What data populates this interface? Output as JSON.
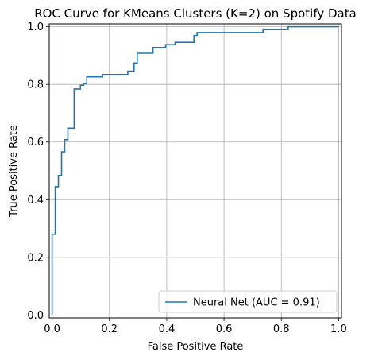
{
  "chart_data": {
    "type": "line",
    "title": "ROC Curve for KMeans Clusters (K=2) on Spotify Data",
    "xlabel": "False Positive Rate",
    "ylabel": "True Positive Rate",
    "xlim": [
      -0.01,
      1.01
    ],
    "ylim": [
      -0.01,
      1.01
    ],
    "xticks": [
      {
        "value": 0.0,
        "label": "0.0"
      },
      {
        "value": 0.2,
        "label": "0.2"
      },
      {
        "value": 0.4,
        "label": "0.4"
      },
      {
        "value": 0.6,
        "label": "0.6"
      },
      {
        "value": 0.8,
        "label": "0.8"
      },
      {
        "value": 1.0,
        "label": "1.0"
      }
    ],
    "yticks": [
      {
        "value": 0.0,
        "label": "0.0"
      },
      {
        "value": 0.2,
        "label": "0.2"
      },
      {
        "value": 0.4,
        "label": "0.4"
      },
      {
        "value": 0.6,
        "label": "0.6"
      },
      {
        "value": 0.8,
        "label": "0.8"
      },
      {
        "value": 1.0,
        "label": "1.0"
      }
    ],
    "grid": true,
    "legend_position": "lower-right",
    "series": [
      {
        "name": "Neural Net (AUC = 0.91)",
        "color": "#1f77b4",
        "points": [
          [
            0.0,
            0.0
          ],
          [
            0.0,
            0.28
          ],
          [
            0.011,
            0.28
          ],
          [
            0.011,
            0.445
          ],
          [
            0.022,
            0.445
          ],
          [
            0.022,
            0.484
          ],
          [
            0.033,
            0.484
          ],
          [
            0.033,
            0.566
          ],
          [
            0.044,
            0.566
          ],
          [
            0.044,
            0.608
          ],
          [
            0.055,
            0.608
          ],
          [
            0.055,
            0.648
          ],
          [
            0.077,
            0.648
          ],
          [
            0.077,
            0.784
          ],
          [
            0.099,
            0.784
          ],
          [
            0.099,
            0.797
          ],
          [
            0.11,
            0.797
          ],
          [
            0.11,
            0.803
          ],
          [
            0.121,
            0.803
          ],
          [
            0.121,
            0.826
          ],
          [
            0.176,
            0.826
          ],
          [
            0.176,
            0.834
          ],
          [
            0.264,
            0.834
          ],
          [
            0.264,
            0.846
          ],
          [
            0.286,
            0.846
          ],
          [
            0.286,
            0.874
          ],
          [
            0.297,
            0.874
          ],
          [
            0.297,
            0.908
          ],
          [
            0.352,
            0.908
          ],
          [
            0.352,
            0.928
          ],
          [
            0.396,
            0.928
          ],
          [
            0.396,
            0.938
          ],
          [
            0.429,
            0.938
          ],
          [
            0.429,
            0.946
          ],
          [
            0.495,
            0.946
          ],
          [
            0.495,
            0.97
          ],
          [
            0.506,
            0.97
          ],
          [
            0.506,
            0.98
          ],
          [
            0.736,
            0.98
          ],
          [
            0.736,
            0.99
          ],
          [
            0.824,
            0.99
          ],
          [
            0.824,
            1.0
          ],
          [
            1.0,
            1.0
          ]
        ]
      }
    ]
  }
}
